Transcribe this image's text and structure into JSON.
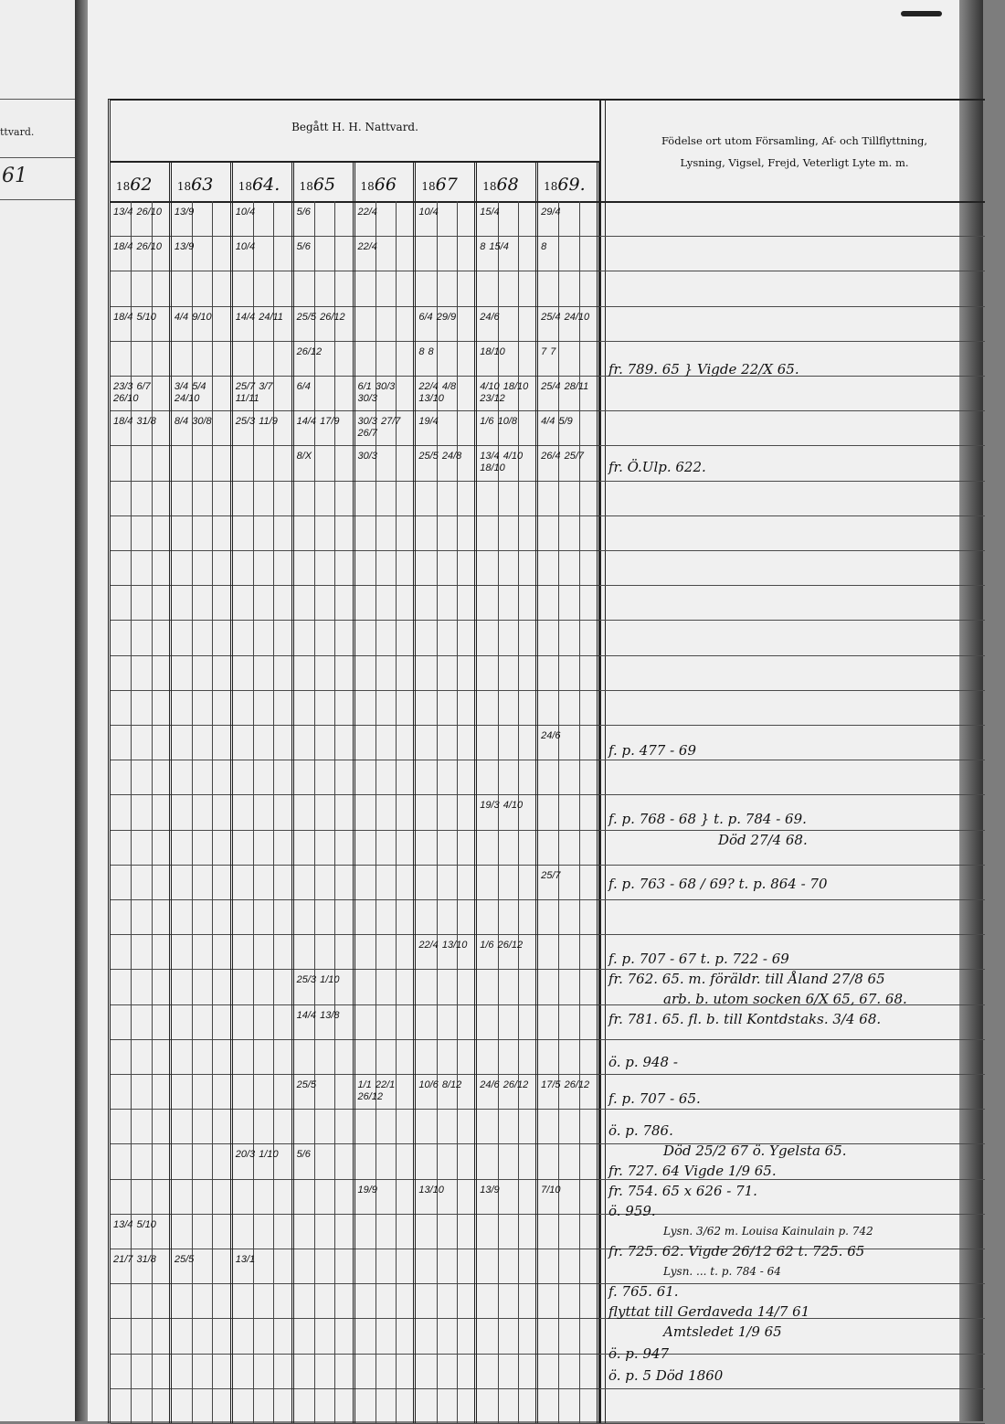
{
  "left_page": {
    "header_fragment": "ttvard.",
    "year_fragment": "61"
  },
  "header": {
    "communion_title": "Begått H. H. Nattvard.",
    "notes_title_line1": "Födelse ort utom Församling, Af- och Tillflyttning,",
    "notes_title_line2": "Lysning, Vigsel, Frejd, Veterligt Lyte m. m.",
    "years": [
      {
        "prefix": "18",
        "suffix": "62"
      },
      {
        "prefix": "18",
        "suffix": "63"
      },
      {
        "prefix": "18",
        "suffix": "64."
      },
      {
        "prefix": "18",
        "suffix": "65"
      },
      {
        "prefix": "18",
        "suffix": "66"
      },
      {
        "prefix": "18",
        "suffix": "67"
      },
      {
        "prefix": "18",
        "suffix": "68"
      },
      {
        "prefix": "18",
        "suffix": "69."
      }
    ]
  },
  "grid": {
    "rows": [
      [
        "13/4  26/10",
        "13/9",
        "10/4",
        "5/6",
        "22/4",
        "10/4",
        "15/4",
        "29/4"
      ],
      [
        "18/4  26/10",
        "13/9",
        "10/4",
        "5/6",
        "22/4",
        "",
        "8  15/4",
        "8"
      ],
      [
        "",
        "",
        "",
        "",
        "",
        "",
        "",
        ""
      ],
      [
        "18/4  5/10",
        "4/4  9/10",
        "14/4  24/11",
        "25/5  26/12",
        "",
        "6/4  29/9",
        "24/6",
        "25/4  24/10"
      ],
      [
        "",
        "",
        "",
        "26/12",
        "",
        "8  8",
        "18/10",
        "7  7"
      ],
      [
        "23/3 6/7 26/10",
        "3/4 5/4 24/10",
        "25/7 3/7 11/11",
        "6/4",
        "6/1 30/3 30/3",
        "22/4 4/8 13/10",
        "4/10 18/10 23/12",
        "25/4 28/11"
      ],
      [
        "18/4  31/8",
        "8/4  30/8",
        "25/3  11/9",
        "14/4  17/9",
        "30/3 27/7 26/7",
        "19/4",
        "1/6  10/8",
        "4/4  5/9"
      ],
      [
        "",
        "",
        "",
        "8/X",
        "30/3",
        "25/5  24/8",
        "13/4 4/10 18/10",
        "26/4  25/7"
      ],
      [
        "",
        "",
        "",
        "",
        "",
        "",
        "",
        ""
      ],
      [
        "",
        "",
        "",
        "",
        "",
        "",
        "",
        ""
      ],
      [
        "",
        "",
        "",
        "",
        "",
        "",
        "",
        ""
      ],
      [
        "",
        "",
        "",
        "",
        "",
        "",
        "",
        ""
      ],
      [
        "",
        "",
        "",
        "",
        "",
        "",
        "",
        ""
      ],
      [
        "",
        "",
        "",
        "",
        "",
        "",
        "",
        ""
      ],
      [
        "",
        "",
        "",
        "",
        "",
        "",
        "",
        ""
      ],
      [
        "",
        "",
        "",
        "",
        "",
        "",
        "",
        "24/6"
      ],
      [
        "",
        "",
        "",
        "",
        "",
        "",
        "",
        ""
      ],
      [
        "",
        "",
        "",
        "",
        "",
        "",
        "19/3  4/10",
        ""
      ],
      [
        "",
        "",
        "",
        "",
        "",
        "",
        "",
        ""
      ],
      [
        "",
        "",
        "",
        "",
        "",
        "",
        "",
        "25/7"
      ],
      [
        "",
        "",
        "",
        "",
        "",
        "",
        "",
        ""
      ],
      [
        "",
        "",
        "",
        "",
        "",
        "22/4  13/10",
        "1/6  26/12",
        ""
      ],
      [
        "",
        "",
        "",
        "25/3  1/10",
        "",
        "",
        "",
        ""
      ],
      [
        "",
        "",
        "",
        "14/4  13/8",
        "",
        "",
        "",
        ""
      ],
      [
        "",
        "",
        "",
        "",
        "",
        "",
        "",
        ""
      ],
      [
        "",
        "",
        "",
        "25/5",
        "1/1 22/1 26/12",
        "10/6  8/12",
        "24/6  26/12",
        "17/5  26/12"
      ],
      [
        "",
        "",
        "",
        "",
        "",
        "",
        "",
        ""
      ],
      [
        "",
        "",
        "20/3  1/10",
        "5/6",
        "",
        "",
        "",
        ""
      ],
      [
        "",
        "",
        "",
        "",
        "19/9",
        "13/10",
        "13/9",
        "7/10"
      ],
      [
        "13/4  5/10",
        "",
        "",
        "",
        "",
        "",
        "",
        ""
      ],
      [
        "21/7  31/8",
        "25/5",
        "13/1",
        "",
        "",
        "",
        "",
        ""
      ],
      [
        "",
        "",
        "",
        "",
        "",
        "",
        "",
        ""
      ],
      [
        "",
        "",
        "",
        "",
        "",
        "",
        "",
        ""
      ],
      [
        "",
        "",
        "",
        "",
        "",
        "",
        "",
        ""
      ]
    ]
  },
  "notes": [
    "fr. 789. 65 } Vigde 22/X 65.",
    "fr. Ö.Ulp. 622.",
    "f. p. 477 - 69",
    "f. p. 768 - 68 } t. p. 784 - 69.",
    "Död 27/4 68.",
    "f. p. 763 - 68 / 69?  t. p. 864 - 70",
    "f. p. 707 - 67  t. p. 722 - 69",
    "fr. 762. 65. m. föräldr. till Åland 27/8 65",
    "arb. b. utom socken 6/X 65, 67. 68.",
    "fr. 781. 65. fl. b. till Kontdstaks. 3/4 68.",
    "ö. p. 948 -",
    "f. p. 707 - 65.",
    "ö. p. 786.",
    "Död 25/2 67  ö. Ygelsta 65.",
    "fr. 727. 64  Vigde 1/9 65.",
    "fr. 754. 65  x 626 - 71.",
    "ö. 959.",
    "Lysn. 3/62 m. Louisa Kainulain p. 742",
    "fr. 725. 62.  Vigde 26/12 62  t. 725. 65",
    "Lysn. ...  t. p. 784 - 64",
    "f. 765. 61.",
    "flyttat till Gerdaveda 14/7 61",
    "Amtsledet 1/9 65",
    "ö. p. 947",
    "ö. p. 5  Död 1860"
  ]
}
